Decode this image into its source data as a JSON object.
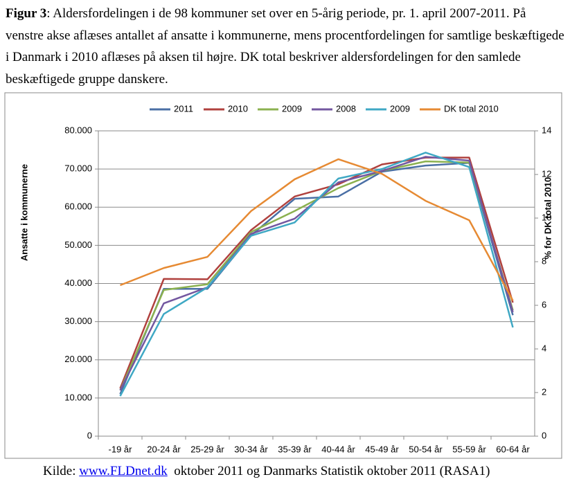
{
  "caption": {
    "label": "Figur 3",
    "text": ": Aldersfordelingen i de 98 kommuner set over en 5-årig periode, pr. 1. april 2007-2011. På venstre akse aflæses antallet af ansatte i kommunerne, mens procentfordelingen for samtlige beskæftigede i Danmark i 2010 aflæses på aksen til højre. DK total beskriver aldersfordelingen for den samlede beskæftigede gruppe danskere."
  },
  "chart_data": {
    "type": "line",
    "y_label": "Ansatte i kommunerne",
    "y2_label": "% for DK total 2010",
    "categories": [
      "-19 år",
      "20-24 år",
      "25-29 år",
      "30-34 år",
      "35-39 år",
      "40-44 år",
      "45-49 år",
      "50-54 år",
      "55-59 år",
      "60-64 år"
    ],
    "series": [
      {
        "name": "2011",
        "color": "#4a6fa5",
        "values": [
          11000,
          38600,
          38600,
          52600,
          62200,
          62800,
          69300,
          70900,
          71600,
          31700
        ]
      },
      {
        "name": "2010",
        "color": "#b0413e",
        "values": [
          12500,
          41200,
          41100,
          54000,
          62800,
          66000,
          71200,
          73000,
          73000,
          35000
        ]
      },
      {
        "name": "2009",
        "color": "#8bb14f",
        "values": [
          12000,
          38300,
          39800,
          53500,
          59000,
          65000,
          69500,
          72000,
          71700,
          33000
        ]
      },
      {
        "name": "2008",
        "color": "#7357a0",
        "values": [
          12000,
          34800,
          39000,
          53000,
          57000,
          66500,
          69500,
          73200,
          72200,
          32500
        ]
      },
      {
        "name": "2009",
        "color": "#3fa8c4",
        "values": [
          10500,
          32000,
          39000,
          52500,
          56000,
          67500,
          70000,
          74300,
          70500,
          28500
        ]
      },
      {
        "name": "DK total 2010",
        "color": "#e68a33",
        "axis": "y2",
        "values": [
          6.92,
          7.71,
          8.22,
          10.32,
          11.78,
          12.7,
          12.03,
          10.79,
          9.9,
          6.22
        ]
      }
    ],
    "ylim": [
      0,
      80000
    ],
    "yticks": [
      0,
      {
        "value": 10000,
        "label": "10.000"
      },
      {
        "value": 20000,
        "label": "20.000"
      },
      {
        "value": 30000,
        "label": "30.000"
      },
      {
        "value": 40000,
        "label": "40.000"
      },
      {
        "value": 50000,
        "label": "50.000"
      },
      {
        "value": 60000,
        "label": "60.000"
      },
      {
        "value": 70000,
        "label": "70.000"
      },
      {
        "value": 80000,
        "label": "80.000"
      }
    ],
    "y2lim": [
      0,
      14
    ],
    "y2ticks": [
      0,
      2,
      4,
      6,
      8,
      10,
      12,
      14
    ],
    "grid": true,
    "legend": "top"
  },
  "source": {
    "prefix": "Kilde:",
    "link": "www.FLDnet.dk",
    "suffix": "oktober 2011 og Danmarks Statistik oktober 2011 (RASA1)"
  }
}
